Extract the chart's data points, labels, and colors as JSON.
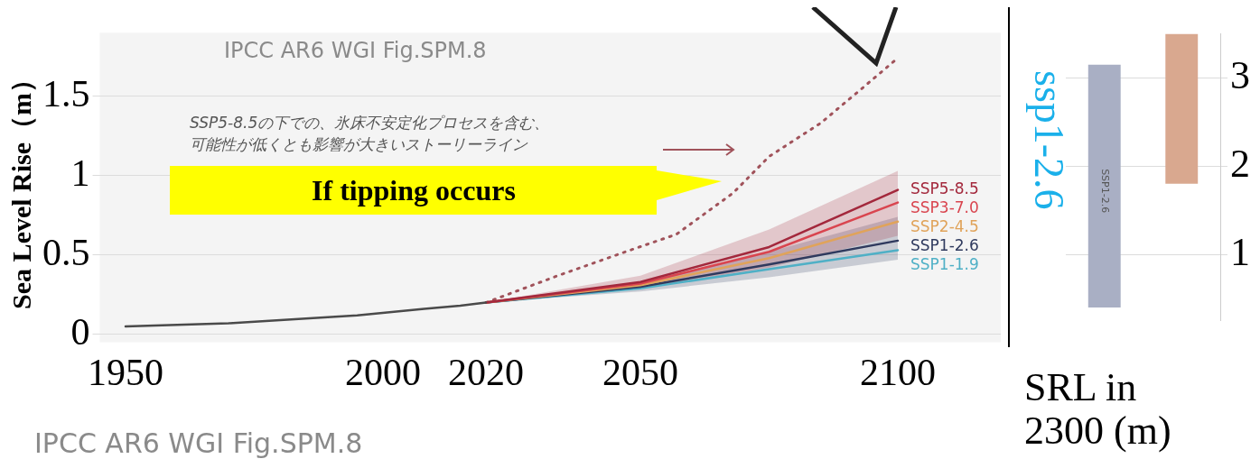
{
  "chart_data": [
    {
      "type": "line",
      "ylabel": "Sea Level Rise（m）",
      "xlim": [
        1945,
        2120
      ],
      "xticks": [
        1950,
        2000,
        2020,
        2050,
        2100
      ],
      "ylim": [
        -0.05,
        1.9
      ],
      "yticks": [
        0,
        0.5,
        1,
        1.5
      ],
      "grid": "y",
      "legend": false,
      "marker": "none",
      "annotations": [
        "IPCC AR6 WGI Fig.SPM.8",
        "SSP5-8.5の下での、氷床不安定化プロセスを含む、可能性が低くとも影響が大きいストーリーライン",
        "If tipping occurs",
        "IPCC AR6 WGI Fig.SPM.8"
      ],
      "series": [
        {
          "x": [
            1950,
            1960,
            1970,
            1985,
            1995,
            2008,
            2015,
            2020
          ],
          "values": [
            0.05,
            0.06,
            0.07,
            0.1,
            0.12,
            0.16,
            0.18,
            0.2
          ],
          "color": "#4a4a4a"
        },
        {
          "name": "SSP5-8.5",
          "x": [
            2020,
            2050,
            2075,
            2100
          ],
          "values": [
            0.2,
            0.33,
            0.55,
            0.91
          ],
          "lower": [
            0.2,
            0.29,
            0.42,
            0.62
          ],
          "upper": [
            0.2,
            0.37,
            0.66,
            1.03
          ],
          "color": "#a3283c"
        },
        {
          "name": "SSP3-7.0",
          "x": [
            2020,
            2050,
            2075,
            2100
          ],
          "values": [
            0.2,
            0.32,
            0.52,
            0.83
          ],
          "color": "#d9454f"
        },
        {
          "name": "SSP2-4.5",
          "x": [
            2020,
            2050,
            2075,
            2100
          ],
          "values": [
            0.2,
            0.31,
            0.48,
            0.71
          ],
          "color": "#e0a35a"
        },
        {
          "name": "SSP1-2.6",
          "x": [
            2020,
            2050,
            2075,
            2100
          ],
          "values": [
            0.2,
            0.3,
            0.44,
            0.59
          ],
          "lower": [
            0.2,
            0.27,
            0.36,
            0.47
          ],
          "upper": [
            0.2,
            0.33,
            0.52,
            0.74
          ],
          "color": "#2f3a5e"
        },
        {
          "name": "SSP1-1.9",
          "x": [
            2020,
            2050,
            2075,
            2100
          ],
          "values": [
            0.2,
            0.29,
            0.41,
            0.53
          ],
          "color": "#4fb0c6"
        },
        {
          "x": [
            2020,
            2034,
            2048,
            2057,
            2068,
            2075,
            2085,
            2092,
            2100
          ],
          "values": [
            0.2,
            0.37,
            0.53,
            0.63,
            0.89,
            1.12,
            1.33,
            1.52,
            1.74
          ],
          "color": "#a0525a",
          "line_style": "dotted"
        }
      ]
    },
    {
      "type": "bar",
      "categories": [
        "SSP1-2.6",
        null
      ],
      "base": [
        0.4,
        1.8
      ],
      "values": [
        2.75,
        1.7
      ],
      "colors": [
        "#a9afc4",
        "#d9a88f"
      ],
      "ylim": [
        0.25,
        3.5
      ],
      "yticks": [
        1,
        2,
        3
      ],
      "grid": "y",
      "tick_labels": "y",
      "xlabel": "SRL in 2300 (m)",
      "annotations": [
        "ssp1-2.6"
      ]
    }
  ]
}
